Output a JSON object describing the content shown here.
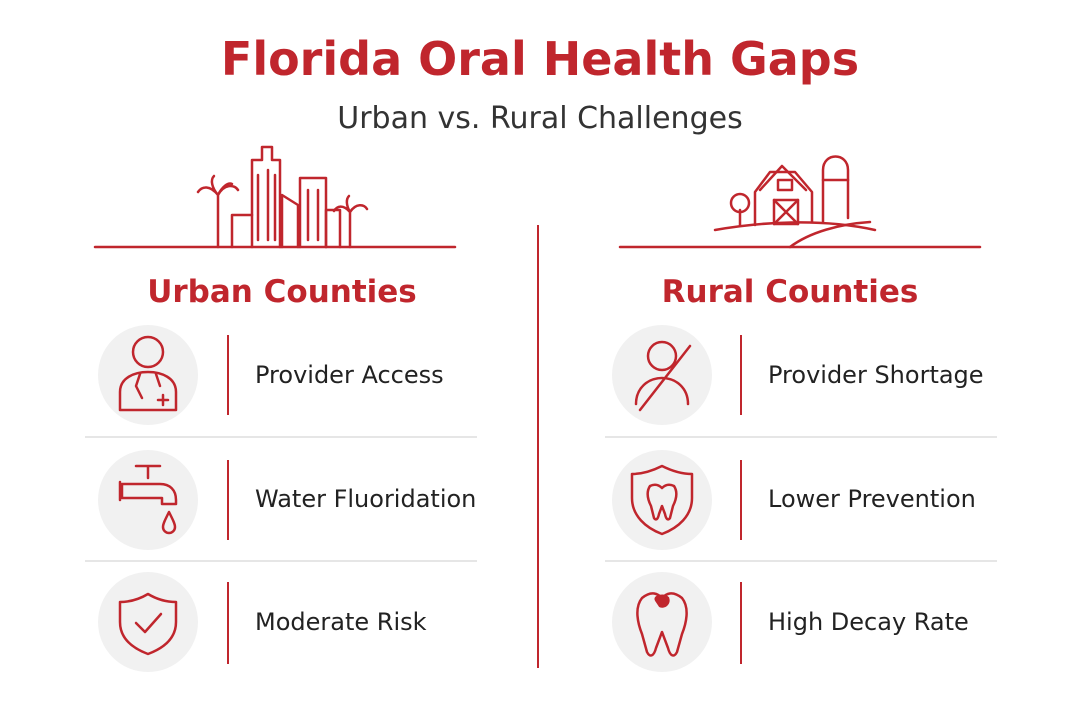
{
  "header": {
    "title": "Florida Oral Health Gaps",
    "subtitle": "Urban vs. Rural Challenges"
  },
  "columns": [
    {
      "heading": "Urban Counties",
      "items": [
        {
          "label": "Provider Access"
        },
        {
          "label": "Water Fluoridation"
        },
        {
          "label": "Moderate Risk"
        }
      ]
    },
    {
      "heading": "Rural Counties",
      "items": [
        {
          "label": "Provider Shortage"
        },
        {
          "label": "Lower Prevention"
        },
        {
          "label": "High Decay Rate"
        }
      ]
    }
  ]
}
